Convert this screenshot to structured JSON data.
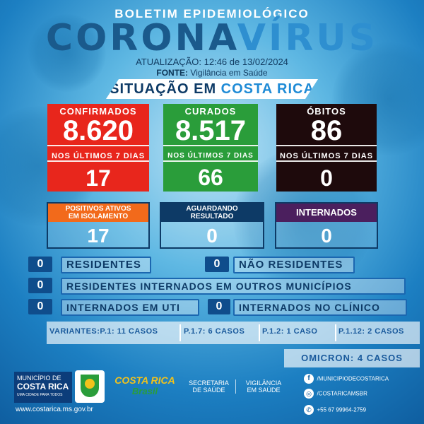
{
  "header": {
    "bulletin": "BOLETIM EPIDEMIOLÓGICO",
    "title_part1": "CORONA",
    "title_part2": "VÍRUS",
    "update": "ATUALIZAÇÃO: 12:46 de 13/02/2024",
    "fonte_label": "FONTE:",
    "fonte_value": "Vigilância em Saúde",
    "situacao_part1": "SITUAÇÃO EM",
    "situacao_part2": "COSTA RICA"
  },
  "stats": {
    "confirmados": {
      "label": "CONFIRMADOS",
      "value": "8.620",
      "sub_label": "NOS ÚLTIMOS 7 DIAS",
      "sub_value": "17",
      "color": "#e8261c"
    },
    "curados": {
      "label": "CURADOS",
      "value": "8.517",
      "sub_label": "NOS ÚLTIMOS 7 DIAS",
      "sub_value": "66",
      "color": "#2a9d3a"
    },
    "obitos": {
      "label": "ÓBITOS",
      "value": "86",
      "sub_label": "NOS ÚLTIMOS 7 DIAS",
      "sub_value": "0",
      "color": "#1e0a0c"
    }
  },
  "status_boxes": {
    "positivos": {
      "label_line1": "POSITIVOS ATIVOS",
      "label_line2": "EM ISOLAMENTO",
      "value": "17",
      "color": "#f26a1b"
    },
    "aguardando": {
      "label_line1": "AGUARDANDO",
      "label_line2": "RESULTADO",
      "value": "0",
      "color": "#0d3a66"
    },
    "internados": {
      "label": "INTERNADOS",
      "value": "0",
      "color": "#4b1f5e"
    }
  },
  "rows": {
    "residentes": {
      "value": "0",
      "label": "RESIDENTES"
    },
    "nao_residentes": {
      "value": "0",
      "label": "NÃO RESIDENTES"
    },
    "outros_municipios": {
      "value": "0",
      "label": "RESIDENTES INTERNADOS EM OUTROS MUNICÍPIOS"
    },
    "uti": {
      "value": "0",
      "label": "INTERNADOS EM UTI"
    },
    "clinico": {
      "value": "0",
      "label": "INTERNADOS NO CLÍNICO"
    }
  },
  "variants": {
    "p1": "VARIANTES:P.1: 11 CASOS",
    "p17": "P.1.7: 6 CASOS",
    "p12": "P.1.2: 1 CASO",
    "p112": "P.1.12: 2 CASOS",
    "omicron": "OMICRON: 4 CASOS"
  },
  "footer": {
    "municipio_line1": "MUNICÍPIO DE",
    "municipio_line2": "COSTA RICA",
    "municipio_slogan": "UMA CIDADE PARA TODOS",
    "website": "www.costarica.ms.gov.br",
    "logo_line1": "COSTA RICA",
    "logo_line2": "Brasil",
    "secretaria_line1": "SECRETARIA",
    "secretaria_line2": "DE SAÚDE",
    "vigilancia_line1": "VIGILÂNCIA",
    "vigilancia_line2": "EM SAÚDE",
    "facebook": "/MUNICIPIODECOSTARICA",
    "instagram": "/COSTARICAMSBR",
    "whatsapp": "+55 67 99964-2759"
  }
}
